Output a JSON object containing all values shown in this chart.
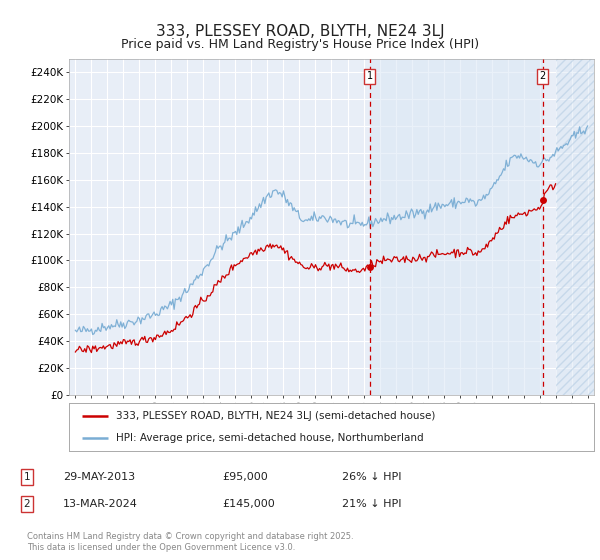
{
  "title": "333, PLESSEY ROAD, BLYTH, NE24 3LJ",
  "subtitle": "Price paid vs. HM Land Registry's House Price Index (HPI)",
  "background_color": "#ffffff",
  "plot_bg_color": "#e8eef7",
  "grid_color": "#ffffff",
  "ylim": [
    0,
    250000
  ],
  "yticks": [
    0,
    20000,
    40000,
    60000,
    80000,
    100000,
    120000,
    140000,
    160000,
    180000,
    200000,
    220000,
    240000
  ],
  "ytick_labels": [
    "£0",
    "£20K",
    "£40K",
    "£60K",
    "£80K",
    "£100K",
    "£120K",
    "£140K",
    "£160K",
    "£180K",
    "£200K",
    "£220K",
    "£240K"
  ],
  "sale_year_1": 2013.4,
  "sale_price_1": 95000,
  "sale_year_2": 2024.2,
  "sale_price_2": 145000,
  "shade_start": 2013.4,
  "shade_end": 2024.2,
  "hatch_start": 2025.0,
  "xmin": 1994.6,
  "xmax": 2027.4,
  "legend_property_label": "333, PLESSEY ROAD, BLYTH, NE24 3LJ (semi-detached house)",
  "legend_hpi_label": "HPI: Average price, semi-detached house, Northumberland",
  "note_1_label": "1",
  "note_1_date": "29-MAY-2013",
  "note_1_price": "£95,000",
  "note_1_hpi": "26% ↓ HPI",
  "note_2_label": "2",
  "note_2_date": "13-MAR-2024",
  "note_2_price": "£145,000",
  "note_2_hpi": "21% ↓ HPI",
  "footer": "Contains HM Land Registry data © Crown copyright and database right 2025.\nThis data is licensed under the Open Government Licence v3.0.",
  "property_line_color": "#cc0000",
  "hpi_line_color": "#7aadd4",
  "dashed_line_color": "#cc0000",
  "shade_color": "#dce8f5",
  "hatch_fill_color": "#dce8f5",
  "title_fontsize": 11,
  "subtitle_fontsize": 9
}
